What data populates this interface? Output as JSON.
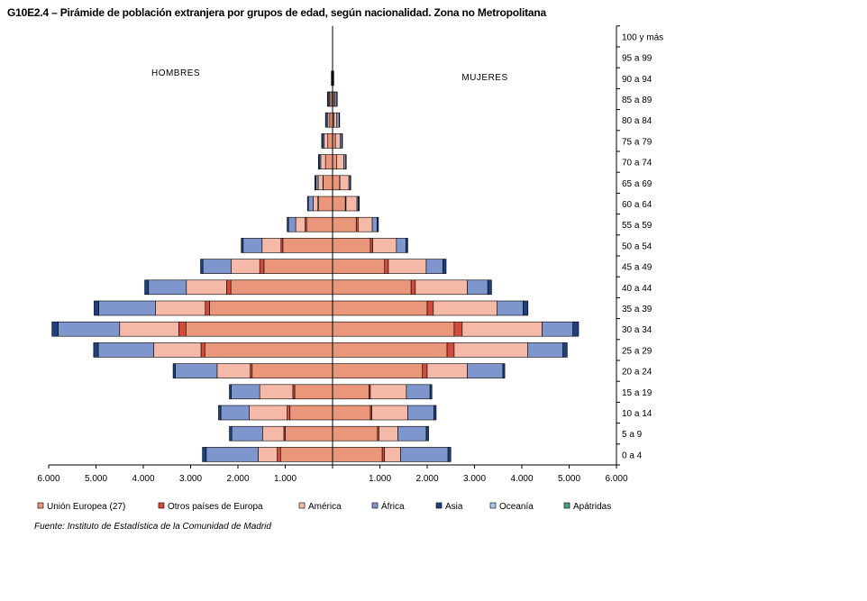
{
  "title": "G10E2.4 – Pirámide de población extranjera por grupos de edad, según nacionalidad. Zona no Metropolitana",
  "source": "Fuente: Instituto de Estadística de la Comunidad de Madrid",
  "chart_data": {
    "type": "bar",
    "orientation": "horizontal-pyramid",
    "side_labels": {
      "left": "HOMBRES",
      "right": "MUJERES"
    },
    "categories": [
      "0 a 4",
      "5 a 9",
      "10 a 14",
      "15 a 19",
      "20 a 24",
      "25 a 29",
      "30 a 34",
      "35 a 39",
      "40 a 44",
      "45 a 49",
      "50 a 54",
      "55 a 59",
      "60 a 64",
      "65 a 69",
      "70 a 74",
      "75 a 79",
      "80 a 84",
      "85 a 89",
      "90 a 94",
      "95 a 99",
      "100 y más"
    ],
    "x_ticks": [
      6000,
      5000,
      4000,
      3000,
      2000,
      1000,
      0,
      1000,
      2000,
      3000,
      4000,
      5000,
      6000
    ],
    "x_tick_labels": [
      "6.000",
      "5.000",
      "4.000",
      "3.000",
      "2.000",
      "1.000",
      "",
      "1.000",
      "2.000",
      "3.000",
      "4.000",
      "5.000",
      "6.000"
    ],
    "xlim": [
      -6000,
      6000
    ],
    "legend_position": "bottom",
    "series": [
      {
        "name": "Unión Europea (27)",
        "color": "#E9967A",
        "hombres": [
          1100,
          1000,
          900,
          800,
          1700,
          2700,
          3100,
          2600,
          2150,
          1450,
          1050,
          550,
          300,
          200,
          150,
          100,
          60,
          40,
          10,
          0,
          0
        ],
        "mujeres": [
          1050,
          950,
          800,
          770,
          1900,
          2420,
          2570,
          2000,
          1660,
          1100,
          800,
          500,
          270,
          150,
          90,
          60,
          30,
          20,
          10,
          0,
          0
        ]
      },
      {
        "name": "Otros países de Europa",
        "color": "#D24B3C",
        "hombres": [
          70,
          30,
          60,
          40,
          40,
          80,
          150,
          90,
          90,
          90,
          40,
          30,
          10,
          5,
          0,
          0,
          0,
          0,
          0,
          0,
          0
        ],
        "mujeres": [
          50,
          30,
          30,
          30,
          100,
          150,
          170,
          130,
          90,
          80,
          50,
          40,
          15,
          5,
          0,
          0,
          0,
          0,
          0,
          0,
          0
        ]
      },
      {
        "name": "América",
        "color": "#F4B9A7",
        "hombres": [
          400,
          450,
          800,
          700,
          700,
          1000,
          1250,
          1050,
          850,
          600,
          400,
          200,
          100,
          100,
          100,
          80,
          40,
          30,
          5,
          0,
          0
        ],
        "mujeres": [
          340,
          400,
          760,
          760,
          850,
          1550,
          1690,
          1350,
          1100,
          800,
          500,
          300,
          230,
          190,
          150,
          100,
          60,
          30,
          5,
          0,
          0
        ]
      },
      {
        "name": "África",
        "color": "#7F96CC",
        "hombres": [
          1100,
          650,
          600,
          600,
          880,
          1170,
          1300,
          1200,
          800,
          600,
          400,
          150,
          100,
          50,
          30,
          30,
          30,
          20,
          0,
          0,
          0
        ],
        "mujeres": [
          1000,
          600,
          550,
          500,
          750,
          750,
          650,
          550,
          430,
          350,
          200,
          100,
          30,
          30,
          40,
          40,
          50,
          40,
          5,
          0,
          0
        ]
      },
      {
        "name": "Asia",
        "color": "#1F3F7F",
        "hombres": [
          80,
          50,
          50,
          40,
          50,
          100,
          130,
          100,
          80,
          50,
          40,
          30,
          20,
          20,
          20,
          20,
          20,
          20,
          10,
          0,
          0
        ],
        "mujeres": [
          60,
          50,
          50,
          40,
          40,
          90,
          120,
          100,
          80,
          70,
          40,
          30,
          20,
          10,
          10,
          10,
          10,
          10,
          5,
          0,
          0
        ]
      },
      {
        "name": "Oceanía",
        "color": "#A6C4E8",
        "hombres": [
          0,
          0,
          0,
          0,
          0,
          0,
          0,
          0,
          0,
          0,
          0,
          0,
          0,
          0,
          0,
          0,
          0,
          0,
          0,
          0,
          0
        ],
        "mujeres": [
          0,
          0,
          0,
          0,
          0,
          0,
          0,
          0,
          0,
          0,
          0,
          0,
          0,
          0,
          0,
          0,
          0,
          0,
          0,
          0,
          0
        ]
      },
      {
        "name": "Apátridas",
        "color": "#4CA67A",
        "hombres": [
          0,
          0,
          0,
          0,
          0,
          0,
          0,
          0,
          0,
          0,
          0,
          0,
          0,
          0,
          0,
          0,
          0,
          0,
          0,
          0,
          0
        ],
        "mujeres": [
          0,
          0,
          0,
          0,
          0,
          0,
          0,
          0,
          0,
          0,
          0,
          0,
          0,
          0,
          0,
          0,
          0,
          0,
          0,
          0,
          0
        ]
      }
    ]
  }
}
